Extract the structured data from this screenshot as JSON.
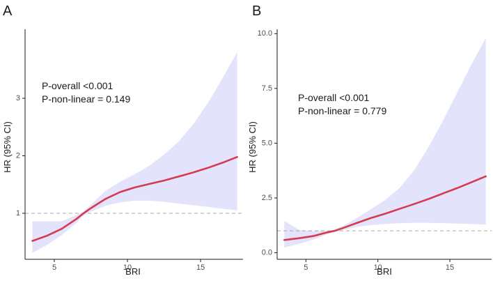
{
  "chart_data": [
    {
      "type": "line",
      "panel_label": "A",
      "xlabel": "BRI",
      "ylabel": "HR (95% CI)",
      "xlim": [
        3.0,
        17.9
      ],
      "ylim": [
        0.2,
        4.2
      ],
      "x_ticks": [
        5,
        10,
        15
      ],
      "y_ticks": [
        1,
        2,
        3
      ],
      "reference_line": 1,
      "annotations": [
        "P-overall <0.001",
        "P-non-linear = 0.149"
      ],
      "series": [
        {
          "name": "HR",
          "color": "#d63a4e",
          "x": [
            3.5,
            4.5,
            5.5,
            6.5,
            7.0,
            7.5,
            8.5,
            9.5,
            10.5,
            11.5,
            12.5,
            13.5,
            14.5,
            15.5,
            16.5,
            17.5
          ],
          "y": [
            0.52,
            0.61,
            0.73,
            0.9,
            1.0,
            1.09,
            1.25,
            1.37,
            1.45,
            1.51,
            1.57,
            1.64,
            1.71,
            1.79,
            1.88,
            1.98
          ],
          "ci_lower": [
            0.31,
            0.45,
            0.62,
            0.83,
            0.96,
            1.03,
            1.13,
            1.19,
            1.22,
            1.22,
            1.2,
            1.17,
            1.14,
            1.11,
            1.08,
            1.05
          ],
          "ci_upper": [
            0.86,
            0.86,
            0.86,
            0.97,
            1.03,
            1.15,
            1.39,
            1.55,
            1.68,
            1.83,
            2.02,
            2.25,
            2.55,
            2.92,
            3.35,
            3.8
          ]
        }
      ]
    },
    {
      "type": "line",
      "panel_label": "B",
      "xlabel": "BRI",
      "ylabel": "HR (95% CI)",
      "xlim": [
        3.0,
        17.9
      ],
      "ylim": [
        -0.3,
        10.2
      ],
      "x_ticks": [
        5,
        10,
        15
      ],
      "y_ticks": [
        0.0,
        2.5,
        5.0,
        7.5,
        10.0
      ],
      "y_tick_labels": [
        "0.0",
        "2.5",
        "5.0",
        "7.5",
        "10.0"
      ],
      "reference_line": 1,
      "annotations": [
        "P-overall <0.001",
        "P-non-linear = 0.779"
      ],
      "series": [
        {
          "name": "HR",
          "color": "#d63a4e",
          "x": [
            3.5,
            4.5,
            5.5,
            6.5,
            7.0,
            7.5,
            8.5,
            9.5,
            10.5,
            11.5,
            12.5,
            13.5,
            14.5,
            15.5,
            16.5,
            17.5
          ],
          "y": [
            0.58,
            0.66,
            0.76,
            0.93,
            1.0,
            1.11,
            1.35,
            1.58,
            1.78,
            2.0,
            2.22,
            2.45,
            2.7,
            2.95,
            3.22,
            3.49
          ],
          "ci_lower": [
            0.24,
            0.4,
            0.6,
            0.85,
            0.95,
            1.03,
            1.17,
            1.26,
            1.31,
            1.35,
            1.36,
            1.36,
            1.35,
            1.33,
            1.31,
            1.28
          ],
          "ci_upper": [
            1.45,
            1.05,
            0.98,
            1.0,
            1.05,
            1.2,
            1.57,
            1.98,
            2.4,
            2.95,
            3.75,
            4.8,
            6.0,
            7.3,
            8.6,
            9.8
          ]
        }
      ]
    }
  ]
}
